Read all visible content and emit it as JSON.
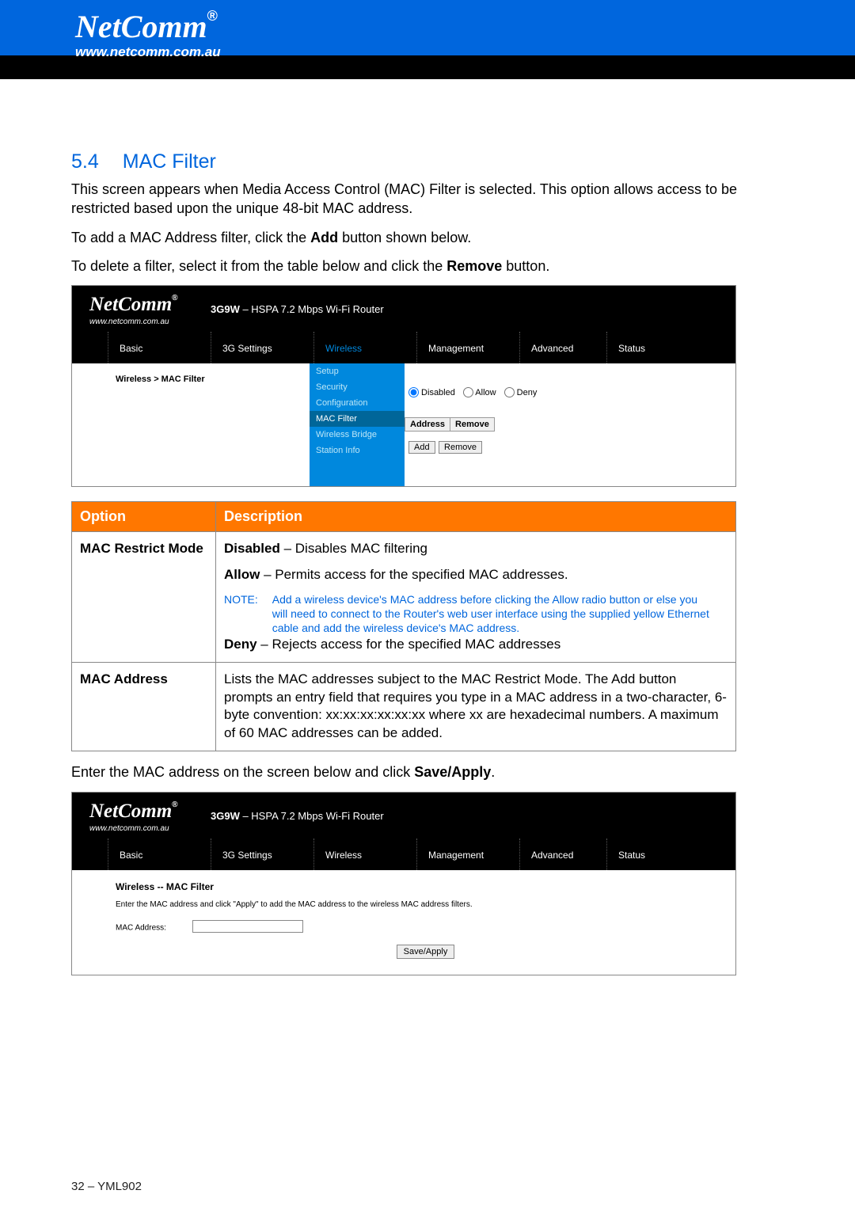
{
  "header": {
    "logo": "NetComm",
    "sub": "www.netcomm.com.au",
    "reg": "®"
  },
  "section": {
    "num": "5.4",
    "title": "MAC Filter"
  },
  "para1": "This screen appears when Media Access Control (MAC) Filter is selected. This option allows access to be restricted based upon the unique 48-bit MAC address.",
  "para2a": "To add a MAC Address filter, click the ",
  "para2b": "Add",
  "para2c": " button shown below.",
  "para3a": "To delete a filter, select it from the table below and click the ",
  "para3b": "Remove",
  "para3c": " button.",
  "router": {
    "logo": "NetComm",
    "logo_sub": "www.netcomm.com.au",
    "title_bold": "3G9W",
    "title_rest": " – HSPA 7.2 Mbps Wi-Fi Router",
    "tabs": [
      "Basic",
      "3G Settings",
      "Wireless",
      "Management",
      "Advanced",
      "Status"
    ],
    "tab_widths": [
      130,
      130,
      130,
      130,
      110,
      110
    ],
    "active_tab": 2,
    "submenu": [
      "Setup",
      "Security",
      "Configuration",
      "MAC Filter",
      "Wireless Bridge",
      "Station Info"
    ],
    "submenu_active": 3,
    "breadcrumb": "Wireless > MAC Filter",
    "radios": [
      "Disabled",
      "Allow",
      "Deny"
    ],
    "radio_selected": 0,
    "table_headers": [
      "Address",
      "Remove"
    ],
    "buttons": [
      "Add",
      "Remove"
    ]
  },
  "opt_table": {
    "header": [
      "Option",
      "Description"
    ],
    "row1": {
      "label": "MAC Restrict Mode",
      "l1b": "Disabled",
      "l1r": " – Disables MAC filtering",
      "l2b": "Allow",
      "l2r": " – Permits access for the specified MAC addresses.",
      "note_label": "NOTE:",
      "note": "Add a wireless device's MAC address before clicking the Allow radio button or else you will need to connect to the Router's web user interface using the supplied yellow Ethernet cable and add the wireless device's MAC address.",
      "l3b": "Deny",
      "l3r": " – Rejects access for the specified MAC addresses"
    },
    "row2": {
      "label": "MAC Address",
      "text": "Lists the MAC addresses subject to the MAC Restrict Mode.  The Add button prompts an entry field that requires you type in a MAC address in a two-character, 6-byte convention: xx:xx:xx:xx:xx:xx where xx are hexadecimal numbers.  A maximum of 60 MAC addresses can be added."
    }
  },
  "para4a": "Enter the MAC address on the screen below and click ",
  "para4b": "Save/Apply",
  "para4c": ".",
  "router2": {
    "breadcrumb": "Wireless -- MAC Filter",
    "help": "Enter the MAC address and click \"Apply\" to add the MAC address to the wireless MAC address filters.",
    "mac_label": "MAC Address:",
    "save": "Save/Apply"
  },
  "footer": "32 – YML902"
}
